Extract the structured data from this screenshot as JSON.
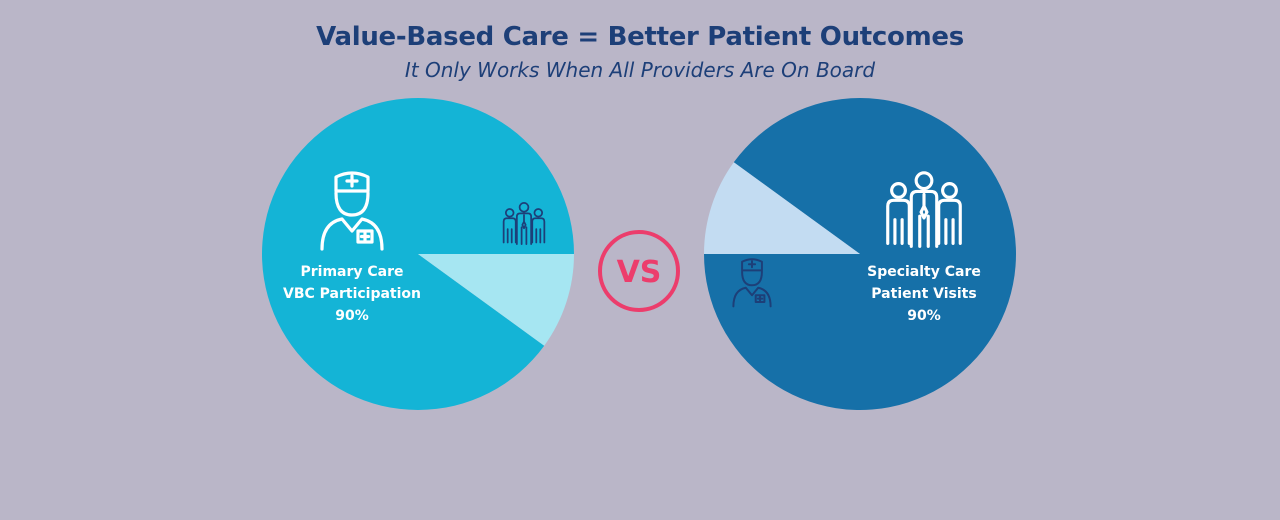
{
  "header": {
    "title": "Value-Based Care = Better Patient Outcomes",
    "subtitle": "It Only Works When All Providers Are On Board"
  },
  "vs_label": "VS",
  "colors": {
    "background": "#bab6c8",
    "title": "#1d3f78",
    "primary_main": "#14b4d6",
    "primary_minor": "#a6e6f2",
    "specialty_main": "#1670a8",
    "specialty_minor": "#c3dcf2",
    "vs": "#ec3d6c",
    "icon_dark": "#1d3f78",
    "icon_light": "#ffffff"
  },
  "chart_data": [
    {
      "type": "pie",
      "label_lines": [
        "Primary Care",
        "VBC Participation",
        "90%"
      ],
      "slices": [
        {
          "value": 90,
          "color": "#14b4d6",
          "icon": "doctor-icon"
        },
        {
          "value": 10,
          "color": "#a6e6f2",
          "icon": "group-icon"
        }
      ]
    },
    {
      "type": "pie",
      "label_lines": [
        "Specialty Care",
        "Patient Visits",
        "90%"
      ],
      "slices": [
        {
          "value": 90,
          "color": "#1670a8",
          "icon": "group-icon"
        },
        {
          "value": 10,
          "color": "#c3dcf2",
          "icon": "doctor-icon"
        }
      ]
    }
  ]
}
